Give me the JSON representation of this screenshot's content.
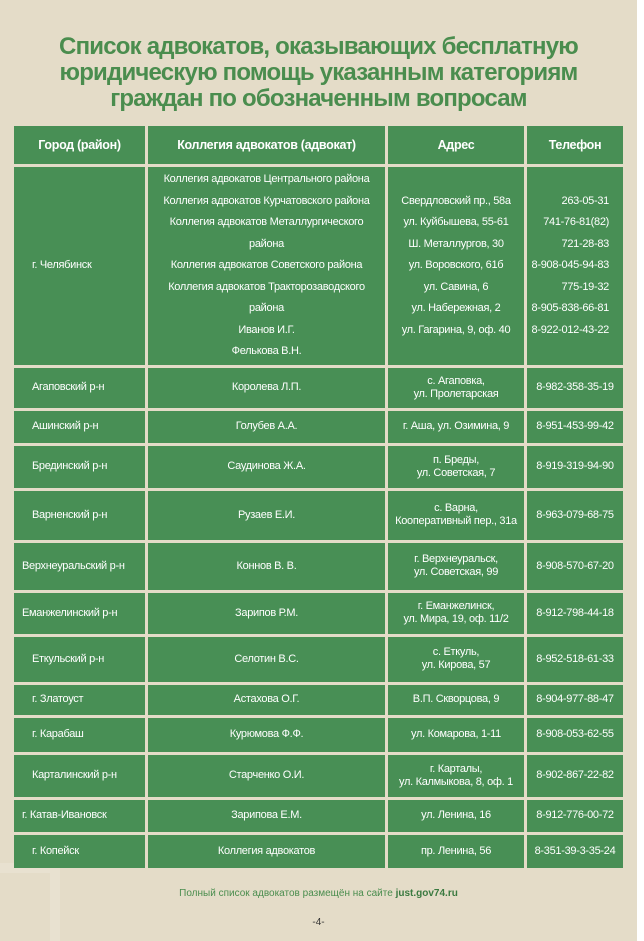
{
  "title": [
    "Список адвокатов, оказывающих бесплатную",
    "юридическую помощь указанным категориям",
    "граждан по обозначенным вопросам"
  ],
  "headers": [
    "Город (район)",
    "Коллегия адвокатов (адвокат)",
    "Адрес",
    "Телефон"
  ],
  "chelyabinsk": {
    "city": "г. Челябинск",
    "entries": [
      {
        "name": "Коллегия адвокатов Центрального района",
        "address": "Свердловский пр., 58а",
        "phone": "263-05-31"
      },
      {
        "name": "Коллегия адвокатов Курчатовского района",
        "address": "ул. Куйбышева, 55-61",
        "phone": "741-76-81(82)"
      },
      {
        "name": "Коллегия адвокатов Металлургического района",
        "address": "Ш. Металлургов, 30",
        "phone": "721-28-83"
      },
      {
        "name": "Коллегия адвокатов Советского района",
        "address": "ул. Воровского, 61б",
        "phone": "8-908-045-94-83"
      },
      {
        "name": "Коллегия адвокатов Тракторозаводского района",
        "address": "ул. Савина, 6",
        "phone": "775-19-32"
      },
      {
        "name": "Иванов И.Г.",
        "address": "ул. Набережная, 2",
        "phone": "8-905-838-66-81"
      },
      {
        "name": "Фелькова В.Н.",
        "address": "ул. Гагарина, 9, оф. 40",
        "phone": "8-922-012-43-22"
      }
    ]
  },
  "rows": [
    {
      "city": "Агаповский р-н",
      "name": "Королева Л.П.",
      "address": [
        "с. Агаповка,",
        "ул. Пролетарская"
      ],
      "phone": "8-982-358-35-19"
    },
    {
      "city": "Ашинский р-н",
      "name": "Голубев А.А.",
      "address": [
        "г. Аша, ул. Озимина, 9"
      ],
      "phone": "8-951-453-99-42"
    },
    {
      "city": "Брединский р-н",
      "name": "Саудинова Ж.А.",
      "address": [
        "п. Бреды,",
        "ул. Советская, 7"
      ],
      "phone": "8-919-319-94-90"
    },
    {
      "city": "Варненский р-н",
      "name": "Рузаев Е.И.",
      "address": [
        "с. Варна,",
        "Кооперативный пер., 31а"
      ],
      "phone": "8-963-079-68-75"
    },
    {
      "city": "Верхнеуральский р-н",
      "name": "Коннов В. В.",
      "address": [
        "г. Верхнеуральск,",
        "ул. Советская, 99"
      ],
      "phone": "8-908-570-67-20"
    },
    {
      "city": "Еманжелинский р-н",
      "name": "Зарипов Р.М.",
      "address": [
        "г. Еманжелинск,",
        "ул. Мира, 19, оф. 11/2"
      ],
      "phone": "8-912-798-44-18"
    },
    {
      "city": "Еткульский р-н",
      "name": "Селотин В.С.",
      "address": [
        "с. Еткуль,",
        "ул. Кирова, 57"
      ],
      "phone": "8-952-518-61-33"
    },
    {
      "city": "г. Златоуст",
      "name": "Астахова О.Г.",
      "address": [
        "В.П. Скворцова, 9"
      ],
      "phone": "8-904-977-88-47"
    },
    {
      "city": "г. Карабаш",
      "name": "Курюмова Ф.Ф.",
      "address": [
        "ул. Комарова, 1-11"
      ],
      "phone": "8-908-053-62-55"
    },
    {
      "city": "Карталинский р-н",
      "name": "Старченко О.И.",
      "address": [
        "г. Карталы,",
        "ул. Калмыкова, 8, оф. 1"
      ],
      "phone": "8-902-867-22-82"
    },
    {
      "city": "г. Катав-Ивановск",
      "name": "Зарипова Е.М.",
      "address": [
        "ул. Ленина, 16"
      ],
      "phone": "8-912-776-00-72"
    },
    {
      "city": "г. Копейск",
      "name": "Коллегия адвокатов",
      "address": [
        "пр. Ленина, 56"
      ],
      "phone": "8-351-39-3-35-24"
    }
  ],
  "row_heights_hint": null,
  "footer": {
    "text": "Полный список адвокатов размещён на сайте ",
    "link": "just.gov74.ru"
  },
  "page_number": "-4-",
  "colors": {
    "green": "#488f55",
    "background": "#e4dcc8",
    "title": "#4a8d4e"
  }
}
